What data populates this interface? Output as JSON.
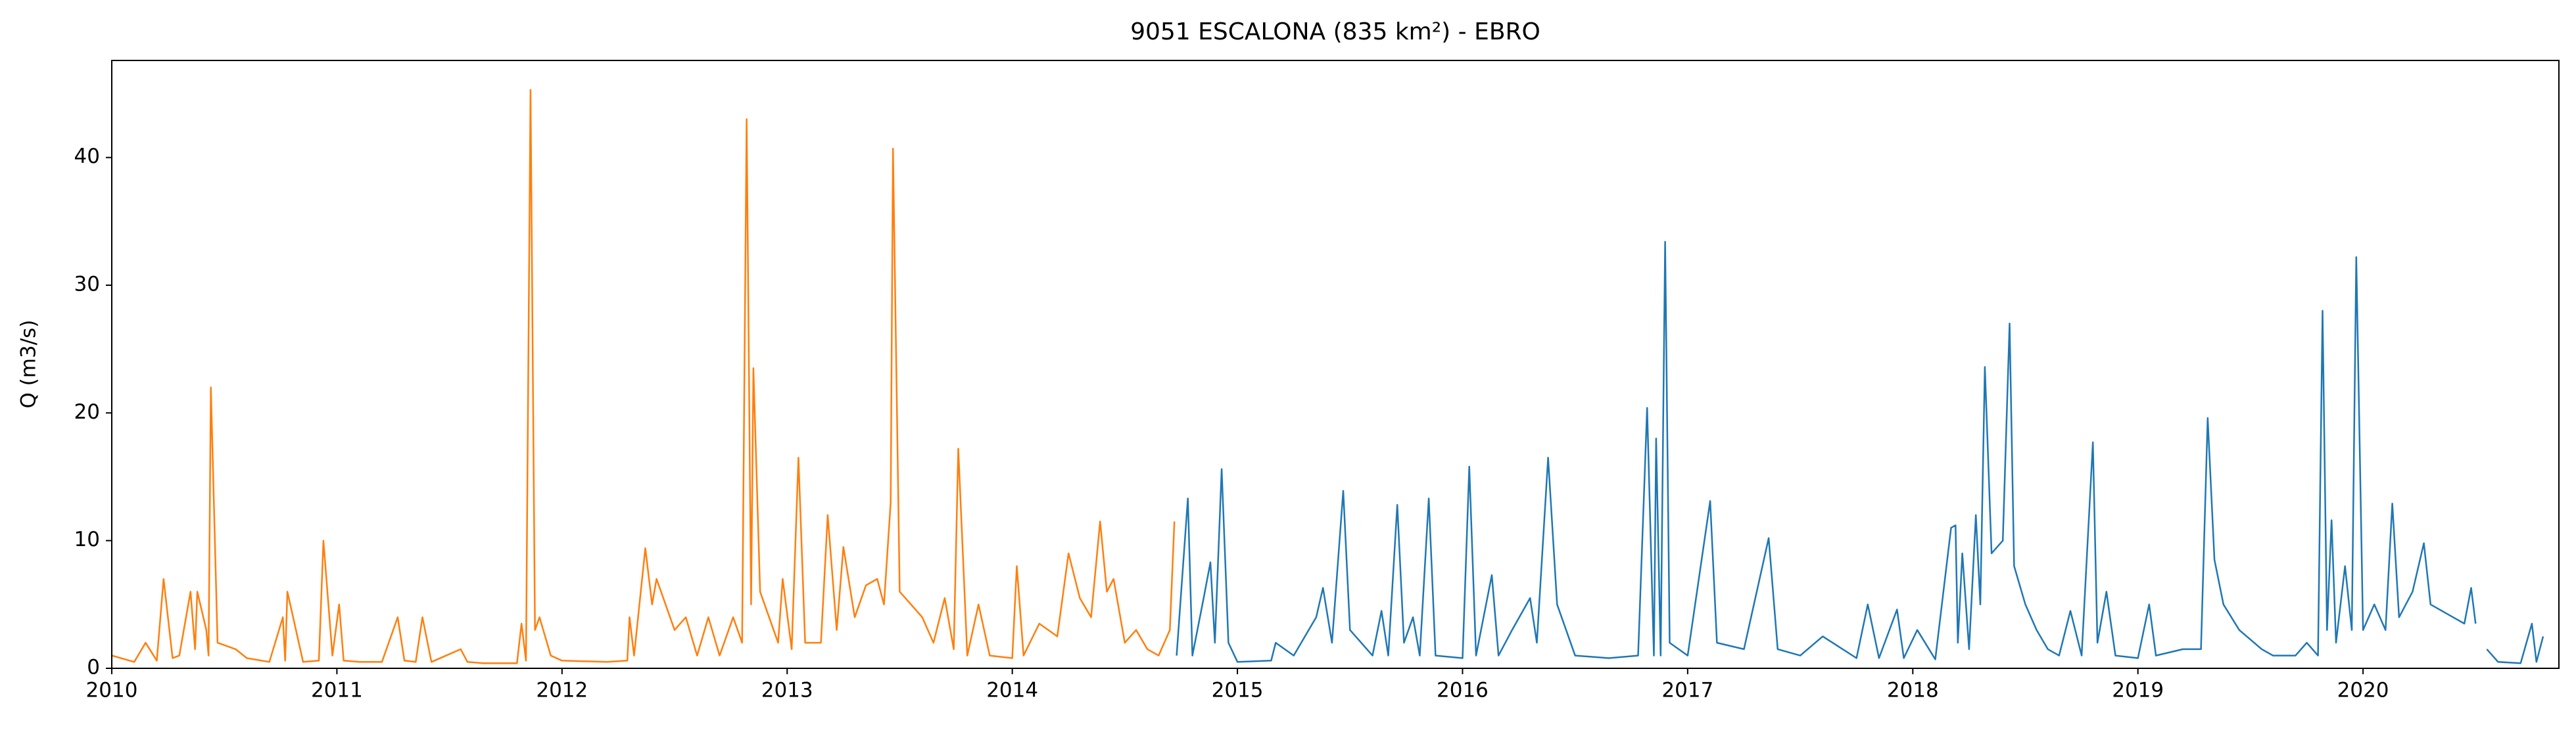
{
  "chart_data": {
    "type": "line",
    "title": "9051 ESCALONA (835 km²) - EBRO",
    "ylabel": "Q (m3/s)",
    "xlim": [
      2010,
      2020.87
    ],
    "xticks": [
      2010,
      2011,
      2012,
      2013,
      2014,
      2015,
      2016,
      2017,
      2018,
      2019,
      2020
    ],
    "ylim": [
      0,
      47.6
    ],
    "yticks": [
      0,
      10,
      20,
      30,
      40
    ],
    "grid": false,
    "series": [
      {
        "color": "#ff7f0e",
        "x": [
          2010.0,
          2010.1,
          2010.15,
          2010.2,
          2010.23,
          2010.27,
          2010.3,
          2010.35,
          2010.37,
          2010.38,
          2010.42,
          2010.43,
          2010.44,
          2010.47,
          2010.55,
          2010.6,
          2010.7,
          2010.76,
          2010.77,
          2010.78,
          2010.85,
          2010.92,
          2010.94,
          2010.98,
          2011.01,
          2011.03,
          2011.1,
          2011.2,
          2011.27,
          2011.3,
          2011.35,
          2011.38,
          2011.42,
          2011.55,
          2011.58,
          2011.65,
          2011.8,
          2011.82,
          2011.84,
          2011.86,
          2011.88,
          2011.9,
          2011.95,
          2012.0,
          2012.2,
          2012.29,
          2012.3,
          2012.32,
          2012.37,
          2012.4,
          2012.42,
          2012.5,
          2012.55,
          2012.6,
          2012.65,
          2012.7,
          2012.76,
          2012.8,
          2012.82,
          2012.84,
          2012.85,
          2012.88,
          2012.92,
          2012.96,
          2012.98,
          2013.02,
          2013.05,
          2013.08,
          2013.15,
          2013.18,
          2013.22,
          2013.25,
          2013.3,
          2013.35,
          2013.4,
          2013.43,
          2013.46,
          2013.47,
          2013.5,
          2013.55,
          2013.6,
          2013.65,
          2013.7,
          2013.74,
          2013.76,
          2013.8,
          2013.85,
          2013.9,
          2014.0,
          2014.02,
          2014.05,
          2014.12,
          2014.2,
          2014.25,
          2014.3,
          2014.35,
          2014.39,
          2014.42,
          2014.45,
          2014.5,
          2014.55,
          2014.6,
          2014.65,
          2014.7,
          2014.72
        ],
        "values": [
          1,
          0.5,
          2,
          0.6,
          7,
          0.8,
          1,
          6,
          1.5,
          6,
          3,
          1,
          22,
          2,
          1.5,
          0.8,
          0.5,
          4,
          0.6,
          6,
          0.5,
          0.6,
          10,
          1,
          5,
          0.6,
          0.5,
          0.5,
          4,
          0.6,
          0.5,
          4,
          0.5,
          1.5,
          0.5,
          0.4,
          0.4,
          3.5,
          0.6,
          45.3,
          3,
          4,
          1,
          0.6,
          0.5,
          0.6,
          4,
          1,
          9.4,
          5,
          7,
          3,
          4,
          1,
          4,
          1,
          4,
          2,
          43,
          5,
          23.5,
          6,
          4,
          2,
          7,
          1.5,
          16.5,
          2,
          2,
          12,
          3,
          9.5,
          4,
          6.5,
          7,
          5,
          13,
          40.7,
          6,
          5,
          4,
          2,
          5.5,
          1.5,
          17.2,
          1,
          5,
          1,
          0.8,
          8,
          1,
          3.5,
          2.5,
          9,
          5.5,
          4,
          11.5,
          6,
          7,
          2,
          3,
          1.5,
          1,
          3,
          11.5
        ]
      },
      {
        "color": "#1f77b4",
        "x": [
          2014.73,
          2014.78,
          2014.8,
          2014.85,
          2014.88,
          2014.9,
          2014.93,
          2014.96,
          2015.0,
          2015.15,
          2015.17,
          2015.25,
          2015.3,
          2015.35,
          2015.38,
          2015.42,
          2015.47,
          2015.5,
          2015.6,
          2015.64,
          2015.67,
          2015.71,
          2015.74,
          2015.78,
          2015.81,
          2015.85,
          2015.88,
          2016.0,
          2016.03,
          2016.06,
          2016.13,
          2016.16,
          2016.22,
          2016.3,
          2016.33,
          2016.38,
          2016.42,
          2016.5,
          2016.65,
          2016.78,
          2016.82,
          2016.85,
          2016.86,
          2016.88,
          2016.9,
          2016.92,
          2017.0,
          2017.1,
          2017.13,
          2017.25,
          2017.36,
          2017.4,
          2017.5,
          2017.6,
          2017.75,
          2017.8,
          2017.85,
          2017.93,
          2017.96,
          2018.02,
          2018.1,
          2018.17,
          2018.19,
          2018.2,
          2018.22,
          2018.25,
          2018.28,
          2018.3,
          2018.32,
          2018.35,
          2018.4,
          2018.43,
          2018.45,
          2018.5,
          2018.55,
          2018.6,
          2018.65,
          2018.7,
          2018.75,
          2018.8,
          2018.82,
          2018.86,
          2018.9,
          2019.0,
          2019.05,
          2019.08,
          2019.2,
          2019.28,
          2019.31,
          2019.34,
          2019.38,
          2019.45,
          2019.55,
          2019.6,
          2019.7,
          2019.75,
          2019.8,
          2019.82,
          2019.84,
          2019.86,
          2019.88,
          2019.92,
          2019.95,
          2019.97,
          2020.0,
          2020.05,
          2020.1,
          2020.13,
          2020.16,
          2020.22,
          2020.27,
          2020.3,
          2020.35,
          2020.4,
          2020.45,
          2020.48,
          2020.5,
          2020.52,
          2020.55,
          2020.6,
          2020.7,
          2020.75,
          2020.77,
          2020.8
        ],
        "values": [
          1,
          13.3,
          1,
          5.5,
          8.3,
          2,
          15.6,
          2,
          0.5,
          0.6,
          2,
          1,
          2.5,
          4,
          6.3,
          2,
          13.9,
          3,
          1,
          4.5,
          1,
          12.8,
          2,
          4,
          1,
          13.3,
          1,
          0.8,
          15.8,
          1,
          7.3,
          1,
          3,
          5.5,
          2,
          16.5,
          5,
          1,
          0.8,
          1,
          20.4,
          1,
          18,
          1,
          33.4,
          2,
          1,
          13.1,
          2,
          1.5,
          10.2,
          1.5,
          1,
          2.5,
          0.8,
          5,
          0.8,
          4.6,
          0.8,
          3,
          0.7,
          11,
          11.2,
          2,
          9,
          1.5,
          12,
          5,
          23.6,
          9,
          10,
          27,
          8,
          5,
          3,
          1.5,
          1,
          4.5,
          1,
          17.7,
          2,
          6,
          1,
          0.8,
          5,
          1,
          1.5,
          1.5,
          19.6,
          8.5,
          5,
          3,
          1.5,
          1,
          1,
          2,
          1,
          28,
          3,
          11.6,
          2,
          8,
          3,
          32.2,
          3,
          5,
          3,
          12.9,
          4,
          6,
          9.8,
          5,
          4.5,
          4,
          3.5,
          6.3,
          3.5,
          null,
          1.5,
          0.5,
          0.4,
          3.5,
          0.5,
          2.5
        ]
      }
    ]
  }
}
